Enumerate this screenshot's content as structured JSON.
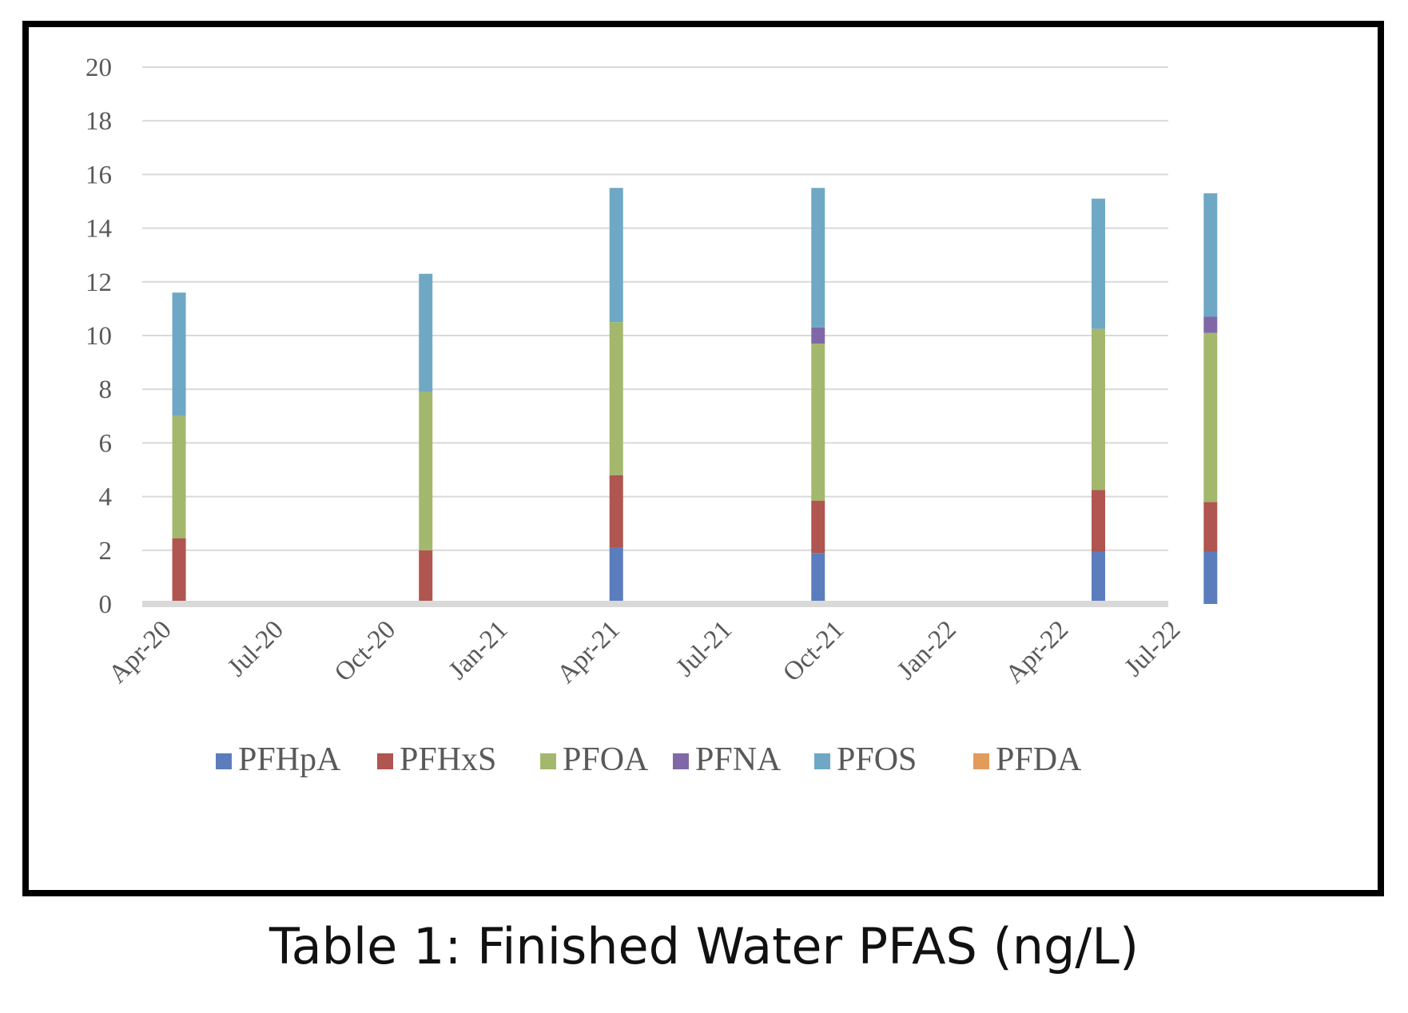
{
  "caption": "Table 1: Finished Water PFAS (ng/L)",
  "chart_data": {
    "type": "bar",
    "stacked": true,
    "title": "",
    "xlabel": "",
    "ylabel": "",
    "ylim": [
      0,
      20
    ],
    "yticks": [
      0,
      2,
      4,
      6,
      8,
      10,
      12,
      14,
      16,
      18,
      20
    ],
    "grid": true,
    "legend_position": "bottom",
    "x_tick_labels": [
      "Apr-20",
      "Jul-20",
      "Oct-20",
      "Jan-21",
      "Apr-21",
      "Jul-21",
      "Oct-21",
      "Jan-22",
      "Apr-22",
      "Jul-22"
    ],
    "x_tick_positions": [
      0,
      1,
      2,
      3,
      4,
      5,
      6,
      7,
      8,
      9
    ],
    "categories": [
      "2020-04",
      "2020-11",
      "2021-04",
      "2021-09",
      "2022-03",
      "2022-06"
    ],
    "x": [
      0.2,
      2.4,
      4.1,
      5.9,
      8.4,
      9.4
    ],
    "series": [
      {
        "name": "PFHpA",
        "color": "#5B7DBD",
        "values": [
          0,
          0,
          2.1,
          1.9,
          1.95,
          1.95
        ]
      },
      {
        "name": "PFHxS",
        "color": "#B0554F",
        "values": [
          2.45,
          2.0,
          2.7,
          1.95,
          2.3,
          1.85
        ]
      },
      {
        "name": "PFOA",
        "color": "#A3B86C",
        "values": [
          4.55,
          5.9,
          5.7,
          5.85,
          6.0,
          6.3
        ]
      },
      {
        "name": "PFNA",
        "color": "#8068A8",
        "values": [
          0,
          0,
          0,
          0.6,
          0,
          0.6
        ]
      },
      {
        "name": "PFOS",
        "color": "#6FA8C5",
        "values": [
          4.6,
          4.4,
          5.0,
          5.2,
          4.85,
          4.6
        ]
      },
      {
        "name": "PFDA",
        "color": "#E39B5C",
        "values": [
          0,
          0,
          0,
          0,
          0,
          0
        ]
      }
    ]
  }
}
